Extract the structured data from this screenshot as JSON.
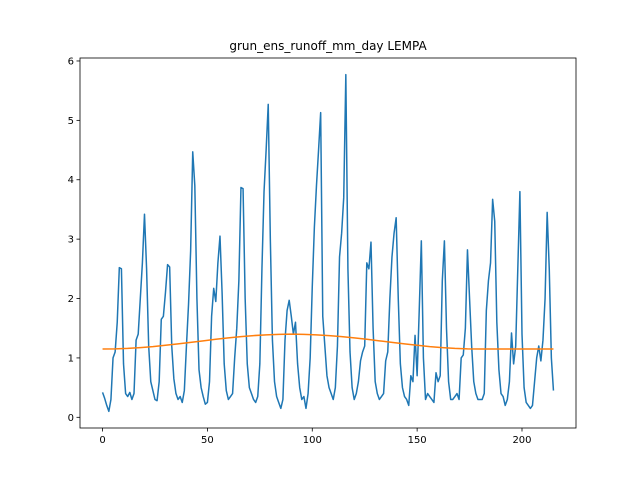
{
  "chart_data": {
    "type": "line",
    "title": "grun_ens_runoff_mm_day LEMPA",
    "xlim": [
      -10.75,
      225.75
    ],
    "xticks": [
      0,
      50,
      100,
      150,
      200
    ],
    "ylim": [
      -0.18,
      6.05
    ],
    "yticks": [
      0,
      1,
      2,
      3,
      4,
      5,
      6
    ],
    "series": [
      {
        "color": "#1f77b4",
        "x": [
          0,
          1,
          2,
          3,
          4,
          5,
          6,
          7,
          8,
          9,
          10,
          11,
          12,
          13,
          14,
          15,
          16,
          17,
          18,
          19,
          20,
          21,
          22,
          23,
          24,
          25,
          26,
          27,
          28,
          29,
          30,
          31,
          32,
          33,
          34,
          35,
          36,
          37,
          38,
          39,
          40,
          41,
          42,
          43,
          44,
          45,
          46,
          47,
          48,
          49,
          50,
          51,
          52,
          53,
          54,
          55,
          56,
          57,
          58,
          59,
          60,
          61,
          62,
          63,
          64,
          65,
          66,
          67,
          68,
          69,
          70,
          71,
          72,
          73,
          74,
          75,
          76,
          77,
          78,
          79,
          80,
          81,
          82,
          83,
          84,
          85,
          86,
          87,
          88,
          89,
          90,
          91,
          92,
          93,
          94,
          95,
          96,
          97,
          98,
          99,
          100,
          101,
          102,
          103,
          104,
          105,
          106,
          107,
          108,
          109,
          110,
          111,
          112,
          113,
          114,
          115,
          116,
          117,
          118,
          119,
          120,
          121,
          122,
          123,
          124,
          125,
          126,
          127,
          128,
          129,
          130,
          131,
          132,
          133,
          134,
          135,
          136,
          137,
          138,
          139,
          140,
          141,
          142,
          143,
          144,
          145,
          146,
          147,
          148,
          149,
          150,
          151,
          152,
          153,
          154,
          155,
          156,
          157,
          158,
          159,
          160,
          161,
          162,
          163,
          164,
          165,
          166,
          167,
          168,
          169,
          170,
          171,
          172,
          173,
          174,
          175,
          176,
          177,
          178,
          179,
          180,
          181,
          182,
          183,
          184,
          185,
          186,
          187,
          188,
          189,
          190,
          191,
          192,
          193,
          194,
          195,
          196,
          197,
          198,
          199,
          200,
          201,
          202,
          203,
          204,
          205,
          206,
          207,
          208,
          209,
          210,
          211,
          212,
          213,
          214,
          215
        ],
        "values": [
          0.42,
          0.32,
          0.2,
          0.1,
          0.3,
          1.0,
          1.1,
          1.6,
          2.52,
          2.5,
          0.9,
          0.4,
          0.35,
          0.42,
          0.3,
          0.4,
          1.3,
          1.4,
          2.0,
          2.6,
          3.42,
          2.5,
          1.2,
          0.6,
          0.45,
          0.3,
          0.28,
          0.6,
          1.65,
          1.7,
          2.1,
          2.57,
          2.53,
          1.2,
          0.65,
          0.4,
          0.3,
          0.35,
          0.25,
          0.45,
          1.2,
          1.9,
          2.8,
          4.47,
          3.9,
          2.0,
          0.8,
          0.5,
          0.35,
          0.22,
          0.25,
          0.6,
          1.7,
          2.17,
          1.95,
          2.6,
          3.05,
          2.1,
          0.9,
          0.45,
          0.3,
          0.35,
          0.4,
          1.0,
          1.5,
          2.3,
          3.87,
          3.85,
          2.0,
          0.9,
          0.5,
          0.4,
          0.3,
          0.25,
          0.35,
          0.9,
          2.5,
          3.8,
          4.5,
          5.27,
          3.0,
          1.3,
          0.6,
          0.35,
          0.25,
          0.15,
          0.3,
          1.3,
          1.8,
          1.97,
          1.7,
          1.4,
          1.6,
          0.9,
          0.5,
          0.3,
          0.35,
          0.15,
          0.4,
          1.0,
          2.2,
          3.2,
          3.9,
          4.5,
          5.13,
          1.7,
          1.2,
          0.7,
          0.5,
          0.4,
          0.3,
          0.5,
          1.2,
          2.7,
          3.1,
          3.7,
          5.77,
          2.5,
          1.1,
          0.5,
          0.3,
          0.4,
          0.6,
          0.95,
          1.1,
          1.2,
          2.6,
          2.5,
          2.95,
          1.5,
          0.6,
          0.4,
          0.3,
          0.35,
          0.4,
          0.95,
          1.1,
          2.0,
          2.7,
          3.1,
          3.36,
          2.0,
          0.9,
          0.5,
          0.35,
          0.3,
          0.2,
          0.7,
          0.6,
          1.38,
          0.7,
          1.8,
          2.97,
          1.0,
          0.3,
          0.4,
          0.35,
          0.3,
          0.25,
          0.75,
          0.6,
          0.7,
          2.3,
          2.97,
          1.5,
          0.6,
          0.3,
          0.3,
          0.35,
          0.4,
          0.3,
          1.0,
          1.05,
          1.5,
          2.82,
          2.0,
          1.2,
          0.6,
          0.4,
          0.3,
          0.3,
          0.3,
          0.4,
          1.8,
          2.3,
          2.6,
          3.67,
          3.3,
          1.6,
          0.8,
          0.4,
          0.35,
          0.2,
          0.3,
          0.6,
          1.42,
          0.9,
          1.2,
          2.5,
          3.8,
          1.4,
          0.5,
          0.25,
          0.2,
          0.15,
          0.2,
          0.6,
          1.0,
          1.2,
          0.95,
          1.3,
          2.0,
          3.45,
          2.5,
          1.0,
          0.45
        ]
      },
      {
        "color": "#ff7f0e",
        "x": [
          0,
          6,
          12,
          18,
          24,
          30,
          36,
          42,
          48,
          54,
          60,
          66,
          72,
          78,
          84,
          90,
          96,
          102,
          108,
          114,
          120,
          126,
          132,
          138,
          144,
          150,
          156,
          162,
          168,
          174,
          180,
          186,
          192,
          198,
          204,
          210,
          215
        ],
        "values": [
          1.15,
          1.153,
          1.161,
          1.174,
          1.191,
          1.213,
          1.236,
          1.262,
          1.288,
          1.314,
          1.338,
          1.359,
          1.376,
          1.389,
          1.397,
          1.4,
          1.397,
          1.389,
          1.376,
          1.359,
          1.338,
          1.314,
          1.288,
          1.262,
          1.236,
          1.213,
          1.191,
          1.174,
          1.161,
          1.153,
          1.15,
          1.15,
          1.15,
          1.15,
          1.15,
          1.15,
          1.15
        ]
      }
    ]
  }
}
